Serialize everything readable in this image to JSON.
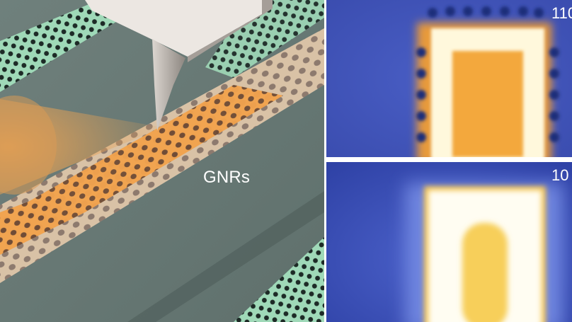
{
  "illustration": {
    "label": "GNRs",
    "colors": {
      "substrate": "#7d8f8b",
      "ribbon_teal": "#9fd9b8",
      "ribbon_orange": "#f2a24c",
      "tip": "#c9c4c0"
    }
  },
  "panels": [
    {
      "label": "110",
      "colors": {
        "background": "#3f52b8",
        "glow": "#f0a838",
        "core": "#fffbe6"
      }
    },
    {
      "label": "10",
      "colors": {
        "background": "#3347ac",
        "glow": "#f3c04a",
        "core": "#fffdf0"
      }
    }
  ]
}
